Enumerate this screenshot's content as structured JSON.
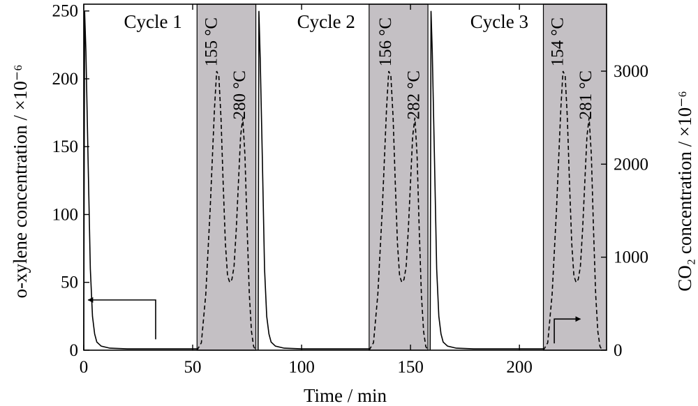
{
  "chart_data": {
    "type": "line",
    "xlabel": "Time / min",
    "ylabel_left": "o-xylene concentration / ×10⁻⁶",
    "ylabel_right": "CO₂ concentration / ×10⁻⁶",
    "xlim": [
      0,
      240
    ],
    "ylim_left": [
      0,
      255
    ],
    "ylim_right": [
      0,
      3720
    ],
    "x_ticks": [
      0,
      50,
      100,
      150,
      200
    ],
    "y_ticks_left": [
      0,
      50,
      100,
      150,
      200,
      250
    ],
    "y_ticks_right": [
      0,
      1000,
      2000,
      3000
    ],
    "grid": false,
    "cycles": [
      {
        "label": "Cycle 1",
        "adsorption_start": 0,
        "desorption_start": 52,
        "desorption_end": 79
      },
      {
        "label": "Cycle 2",
        "adsorption_start": 80,
        "desorption_start": 131,
        "desorption_end": 158
      },
      {
        "label": "Cycle 3",
        "adsorption_start": 159,
        "desorption_start": 211,
        "desorption_end": 240
      }
    ],
    "peak_labels": [
      {
        "text": "155 °C",
        "x": 61,
        "y_right": 3050
      },
      {
        "text": "280 °C",
        "x": 74,
        "y_right": 2480
      },
      {
        "text": "156 °C",
        "x": 141,
        "y_right": 3050
      },
      {
        "text": "282 °C",
        "x": 154,
        "y_right": 2480
      },
      {
        "text": "154 °C",
        "x": 220,
        "y_right": 3050
      },
      {
        "text": "281 °C",
        "x": 233,
        "y_right": 2480
      }
    ],
    "series": [
      {
        "name": "o-xylene",
        "axis": "left",
        "style": "solid",
        "segments": [
          [
            [
              0,
              0
            ],
            [
              0.4,
              250
            ],
            [
              1,
              220
            ],
            [
              2,
              140
            ],
            [
              3,
              60
            ],
            [
              4,
              25
            ],
            [
              5,
              12
            ],
            [
              6,
              6
            ],
            [
              8,
              3
            ],
            [
              12,
              1.5
            ],
            [
              20,
              1
            ],
            [
              52,
              1
            ]
          ],
          [
            [
              80,
              0
            ],
            [
              80.4,
              250
            ],
            [
              81,
              215
            ],
            [
              82,
              140
            ],
            [
              83,
              60
            ],
            [
              84,
              25
            ],
            [
              85,
              12
            ],
            [
              86,
              6
            ],
            [
              88,
              3
            ],
            [
              92,
              1.5
            ],
            [
              100,
              1
            ],
            [
              131,
              1
            ]
          ],
          [
            [
              159,
              0
            ],
            [
              159.4,
              250
            ],
            [
              160,
              220
            ],
            [
              161,
              140
            ],
            [
              162,
              60
            ],
            [
              163,
              25
            ],
            [
              164,
              12
            ],
            [
              165,
              6
            ],
            [
              167,
              3
            ],
            [
              171,
              1.5
            ],
            [
              179,
              1
            ],
            [
              211,
              1
            ]
          ]
        ]
      },
      {
        "name": "CO2",
        "axis": "right",
        "style": "dashed",
        "segments": [
          [
            [
              52,
              0
            ],
            [
              54,
              80
            ],
            [
              56,
              600
            ],
            [
              58,
              1500
            ],
            [
              60,
              2600
            ],
            [
              61,
              3000
            ],
            [
              62,
              2950
            ],
            [
              63,
              2500
            ],
            [
              64,
              1800
            ],
            [
              65,
              1150
            ],
            [
              66,
              800
            ],
            [
              67,
              730
            ],
            [
              68,
              760
            ],
            [
              69,
              900
            ],
            [
              70,
              1300
            ],
            [
              71,
              1800
            ],
            [
              72,
              2300
            ],
            [
              73,
              2500
            ],
            [
              74,
              2100
            ],
            [
              75,
              1300
            ],
            [
              76,
              600
            ],
            [
              77,
              200
            ],
            [
              78,
              40
            ],
            [
              79,
              0
            ]
          ],
          [
            [
              131,
              0
            ],
            [
              133,
              80
            ],
            [
              135,
              600
            ],
            [
              137,
              1500
            ],
            [
              139,
              2600
            ],
            [
              140,
              3000
            ],
            [
              141,
              2950
            ],
            [
              142,
              2500
            ],
            [
              143,
              1800
            ],
            [
              144,
              1150
            ],
            [
              145,
              800
            ],
            [
              146,
              730
            ],
            [
              147,
              760
            ],
            [
              148,
              900
            ],
            [
              149,
              1300
            ],
            [
              150,
              1800
            ],
            [
              151,
              2300
            ],
            [
              152,
              2500
            ],
            [
              153,
              2100
            ],
            [
              154,
              1300
            ],
            [
              155,
              600
            ],
            [
              156,
              200
            ],
            [
              157,
              40
            ],
            [
              158,
              0
            ]
          ],
          [
            [
              211,
              0
            ],
            [
              213,
              80
            ],
            [
              215,
              600
            ],
            [
              217,
              1500
            ],
            [
              219,
              2600
            ],
            [
              220,
              3000
            ],
            [
              221,
              2950
            ],
            [
              222,
              2500
            ],
            [
              223,
              1800
            ],
            [
              224,
              1150
            ],
            [
              225,
              800
            ],
            [
              226,
              730
            ],
            [
              227,
              760
            ],
            [
              228,
              900
            ],
            [
              229,
              1300
            ],
            [
              230,
              1800
            ],
            [
              231,
              2300
            ],
            [
              232,
              2500
            ],
            [
              233,
              2100
            ],
            [
              234,
              1300
            ],
            [
              235,
              600
            ],
            [
              236,
              200
            ],
            [
              237,
              40
            ],
            [
              238,
              0
            ]
          ]
        ]
      }
    ],
    "axis_arrows": [
      {
        "points": [
          [
            33,
            8
          ],
          [
            33,
            37
          ],
          [
            2,
            37
          ]
        ],
        "axis": "left",
        "points_to": "left"
      },
      {
        "points": [
          [
            216,
            5
          ],
          [
            216,
            23
          ],
          [
            228,
            23
          ]
        ],
        "axis": "left",
        "points_to": "right"
      }
    ],
    "colors": {
      "desorption_shade": "#c4c0c4",
      "line": "#000000",
      "background": "#ffffff"
    }
  }
}
